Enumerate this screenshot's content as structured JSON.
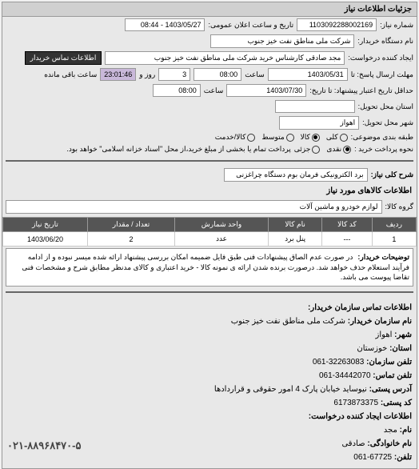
{
  "header": "جزئیات اطلاعات نیاز",
  "fields": {
    "req_number_label": "شماره نیاز:",
    "req_number": "1103092288002169",
    "announce_label": "تاریخ و ساعت اعلان عمومی:",
    "announce_date": "1403/05/27 - 08:44",
    "buyer_label": "نام دستگاه خریدار:",
    "buyer": "شرکت ملی مناطق نفت خیز جنوب",
    "creator_label": "ایجاد کننده درخواست:",
    "creator": "مجد صادقی  کارشناس خرید  شرکت ملی مناطق نفت خیز جنوب",
    "contact_btn": "اطلاعات تماس خریدار",
    "deadline_send_label": "مهلت ارسال پاسخ: تا",
    "deadline_date1": "1403/05/31",
    "time_label": "ساعت",
    "time1": "08:00",
    "days": "3",
    "days_label": "روز و",
    "remaining": "23:01:46",
    "remaining_label": "ساعت باقی مانده",
    "validity_label": "حداقل تاریخ اعتبار پیشنهاد: تا تاریخ:",
    "validity_date": "1403/07/30",
    "time2": "08:00",
    "delivery_province_label": "استان محل تحویل:",
    "delivery_city_label": "شهر محل تحویل:",
    "delivery_city": "اهواز",
    "category_label": "طبقه بندی موضوعی:",
    "cat_all": "کلی",
    "cat_goods": "کالا",
    "cat_mid": "متوسط",
    "cat_service": "کالا/خدمت",
    "payment_label": "نحوه پرداخت خرید :",
    "pay_cash": "نقدی",
    "pay_partial": "جزئی",
    "payment_note": "پرداخت تمام یا بخشی از مبلغ خرید،از محل \"اسناد خزانه اسلامی\" خواهد بود."
  },
  "desc": {
    "title_label": "شرح کلی نیاز:",
    "title": "برد الکترونیکی فرمان بوم دستگاه چراغزنی",
    "section": "اطلاعات کالاهای مورد نیاز",
    "group_label": "گروه کالا:",
    "group": "لوازم خودرو و ماشین آلات"
  },
  "table": {
    "headers": [
      "ردیف",
      "کد کالا",
      "نام کالا",
      "واحد شمارش",
      "تعداد / مقدار",
      "تاریخ نیاز"
    ],
    "row": [
      "1",
      "---",
      "پنل برد",
      "عدد",
      "2",
      "1403/06/20"
    ]
  },
  "buyer_notes": {
    "label": "توضیحات خریدار:",
    "text": "در صورت عدم الصاق پیشنهادات فنی طبق فایل ضمیمه امکان بررسی پیشنهاد ارائه شده میسر نبوده و از ادامه فرآیند استعلام حذف خواهد شد. درصورت برنده شدن ارائه ی نمونه کالا - خرید اعتباری و کالای مدنظر مطابق شرح و مشخصات فنی تقاضا پیوست می باشد."
  },
  "contact": {
    "title": "اطلاعات تماس سازمان خریدار:",
    "org_label": "نام سازمان خریدار:",
    "org": "شرکت ملی مناطق نفت خیز جنوب",
    "city_label": "شهر:",
    "city": "اهواز",
    "province_label": "استان:",
    "province": "خوزستان",
    "phone_label": "تلفن سازمان:",
    "phone": "32263083-061",
    "fax_label": "تلفن تماس:",
    "fax": "34442070-061",
    "address_label": "آدرس پستی:",
    "address": "نیوساید خیابان پارک 4 امور حقوقی و قراردادها",
    "postal_label": "کد پستی:",
    "postal": "6173873375",
    "creator_section": "اطلاعات ایجاد کننده درخواست:",
    "name_label": "نام:",
    "name": "مجد",
    "surname_label": "نام خانوادگی:",
    "surname": "صادقی",
    "tel_label": "تلفن:",
    "tel": "67725-061",
    "footer_phone": "۰۲۱-۸۸۹۶۸۴۷۰-۵"
  }
}
